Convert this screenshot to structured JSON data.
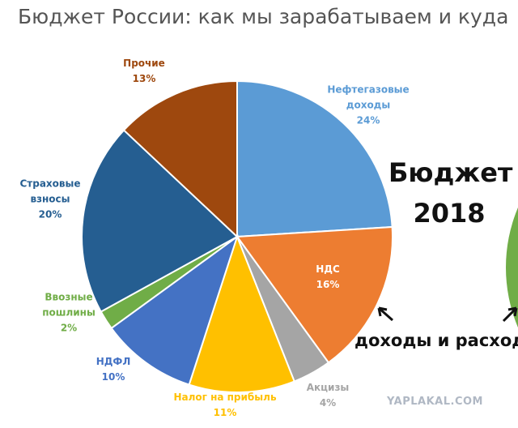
{
  "chart_data": {
    "type": "pie",
    "title": "Бюджет России: как мы зарабатываем и куда",
    "categories": [
      "Нефтегазовые доходы",
      "НДС",
      "Акцизы",
      "Налог на прибыль",
      "НДФЛ",
      "Ввозные пошлины",
      "Страховые взносы",
      "Прочие"
    ],
    "values": [
      24,
      16,
      4,
      11,
      10,
      2,
      20,
      13
    ],
    "value_labels": [
      "24%",
      "16%",
      "4%",
      "11%",
      "10%",
      "2%",
      "20%",
      "13%"
    ],
    "colors": [
      "#5b9bd5",
      "#ed7d31",
      "#a5a5a5",
      "#ffc000",
      "#4472c4",
      "#70ad47",
      "#255e91",
      "#9e480e"
    ],
    "side_title": "Бюджет 2018",
    "side_caption": "доходы и расходы",
    "watermark": "YAPLAKAL.COM"
  }
}
